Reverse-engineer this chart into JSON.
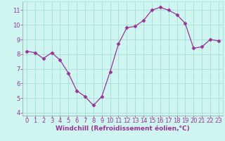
{
  "x": [
    0,
    1,
    2,
    3,
    4,
    5,
    6,
    7,
    8,
    9,
    10,
    11,
    12,
    13,
    14,
    15,
    16,
    17,
    18,
    19,
    20,
    21,
    22,
    23
  ],
  "y": [
    8.2,
    8.1,
    7.7,
    8.1,
    7.6,
    6.7,
    5.5,
    5.1,
    4.5,
    5.1,
    6.8,
    8.7,
    9.8,
    9.9,
    10.3,
    11.0,
    11.2,
    11.0,
    10.7,
    10.1,
    8.4,
    8.5,
    9.0,
    8.9
  ],
  "line_color": "#993399",
  "marker": "D",
  "markersize": 2.5,
  "linewidth": 0.9,
  "bg_color": "#cef5f0",
  "grid_color": "#a8ddd8",
  "xlabel": "Windchill (Refroidissement éolien,°C)",
  "xlabel_fontsize": 6.5,
  "tick_fontsize": 6,
  "xlim": [
    -0.5,
    23.5
  ],
  "ylim": [
    3.8,
    11.6
  ],
  "yticks": [
    4,
    5,
    6,
    7,
    8,
    9,
    10,
    11
  ],
  "xticks": [
    0,
    1,
    2,
    3,
    4,
    5,
    6,
    7,
    8,
    9,
    10,
    11,
    12,
    13,
    14,
    15,
    16,
    17,
    18,
    19,
    20,
    21,
    22,
    23
  ]
}
